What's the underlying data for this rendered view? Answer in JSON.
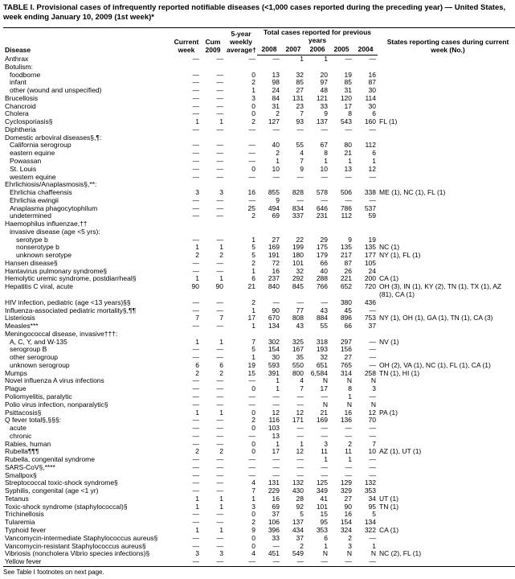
{
  "title": "TABLE I. Provisional cases of infrequently reported notifiable diseases (<1,000 cases reported during the preceding year) — United States, week ending January 10, 2009 (1st week)*",
  "headers": {
    "disease": "Disease",
    "current_week": "Current week",
    "cum_2009": "Cum 2009",
    "avg": "5-year weekly average†",
    "total_span": "Total cases reported for previous years",
    "y2008": "2008",
    "y2007": "2007",
    "y2006": "2006",
    "y2005": "2005",
    "y2004": "2004",
    "states": "States reporting cases during current week (No.)"
  },
  "rows": [
    {
      "d": "Anthrax",
      "i": 0,
      "v": [
        "—",
        "—",
        "—",
        "—",
        "1",
        "1",
        "—",
        "—"
      ],
      "s": ""
    },
    {
      "d": "Botulism:",
      "i": 0,
      "v": [
        "",
        "",
        "",
        "",
        "",
        "",
        "",
        ""
      ],
      "s": ""
    },
    {
      "d": "foodborne",
      "i": 1,
      "v": [
        "—",
        "—",
        "0",
        "13",
        "32",
        "20",
        "19",
        "16"
      ],
      "s": ""
    },
    {
      "d": "infant",
      "i": 1,
      "v": [
        "—",
        "—",
        "2",
        "98",
        "85",
        "97",
        "85",
        "87"
      ],
      "s": ""
    },
    {
      "d": "other (wound and unspecified)",
      "i": 1,
      "v": [
        "—",
        "—",
        "1",
        "24",
        "27",
        "48",
        "31",
        "30"
      ],
      "s": ""
    },
    {
      "d": "Brucellosis",
      "i": 0,
      "v": [
        "—",
        "—",
        "3",
        "84",
        "131",
        "121",
        "120",
        "114"
      ],
      "s": ""
    },
    {
      "d": "Chancroid",
      "i": 0,
      "v": [
        "—",
        "—",
        "0",
        "31",
        "23",
        "33",
        "17",
        "30"
      ],
      "s": ""
    },
    {
      "d": "Cholera",
      "i": 0,
      "v": [
        "—",
        "—",
        "0",
        "2",
        "7",
        "9",
        "8",
        "6"
      ],
      "s": ""
    },
    {
      "d": "Cyclosporiasis§",
      "i": 0,
      "v": [
        "1",
        "1",
        "2",
        "127",
        "93",
        "137",
        "543",
        "160"
      ],
      "s": "FL (1)"
    },
    {
      "d": "Diphtheria",
      "i": 0,
      "v": [
        "—",
        "—",
        "—",
        "—",
        "—",
        "—",
        "—",
        "—"
      ],
      "s": ""
    },
    {
      "d": "Domestic arboviral diseases§,¶:",
      "i": 0,
      "v": [
        "",
        "",
        "",
        "",
        "",
        "",
        "",
        ""
      ],
      "s": ""
    },
    {
      "d": "California serogroup",
      "i": 1,
      "v": [
        "—",
        "—",
        "—",
        "40",
        "55",
        "67",
        "80",
        "112"
      ],
      "s": ""
    },
    {
      "d": "eastern equine",
      "i": 1,
      "v": [
        "—",
        "—",
        "—",
        "2",
        "4",
        "8",
        "21",
        "6"
      ],
      "s": ""
    },
    {
      "d": "Powassan",
      "i": 1,
      "v": [
        "—",
        "—",
        "—",
        "1",
        "7",
        "1",
        "1",
        "1"
      ],
      "s": ""
    },
    {
      "d": "St. Louis",
      "i": 1,
      "v": [
        "—",
        "—",
        "0",
        "10",
        "9",
        "10",
        "13",
        "12"
      ],
      "s": ""
    },
    {
      "d": "western equine",
      "i": 1,
      "v": [
        "—",
        "—",
        "—",
        "—",
        "—",
        "—",
        "—",
        "—"
      ],
      "s": ""
    },
    {
      "d": "Ehrlichiosis/Anaplasmosis§,**:",
      "i": 0,
      "v": [
        "",
        "",
        "",
        "",
        "",
        "",
        "",
        ""
      ],
      "s": ""
    },
    {
      "d": "Ehrlichia chaffeensis",
      "i": 1,
      "v": [
        "3",
        "3",
        "16",
        "855",
        "828",
        "578",
        "506",
        "338"
      ],
      "s": "ME (1), NC (1), FL (1)"
    },
    {
      "d": "Ehrlichia ewingii",
      "i": 1,
      "v": [
        "—",
        "—",
        "—",
        "9",
        "—",
        "—",
        "—",
        "—"
      ],
      "s": ""
    },
    {
      "d": "Anaplasma phagocytophilum",
      "i": 1,
      "v": [
        "—",
        "—",
        "25",
        "494",
        "834",
        "646",
        "786",
        "537"
      ],
      "s": ""
    },
    {
      "d": "undetermined",
      "i": 1,
      "v": [
        "—",
        "—",
        "2",
        "69",
        "337",
        "231",
        "112",
        "59"
      ],
      "s": ""
    },
    {
      "d": "Haemophilus influenzae,††",
      "i": 0,
      "v": [
        "",
        "",
        "",
        "",
        "",
        "",
        "",
        ""
      ],
      "s": ""
    },
    {
      "d": "invasive disease (age <5 yrs):",
      "i": 1,
      "v": [
        "",
        "",
        "",
        "",
        "",
        "",
        "",
        ""
      ],
      "s": ""
    },
    {
      "d": "serotype b",
      "i": 2,
      "v": [
        "—",
        "—",
        "1",
        "27",
        "22",
        "29",
        "9",
        "19"
      ],
      "s": ""
    },
    {
      "d": "nonserotype b",
      "i": 2,
      "v": [
        "1",
        "1",
        "5",
        "169",
        "199",
        "175",
        "135",
        "135"
      ],
      "s": "NC (1)"
    },
    {
      "d": "unknown serotype",
      "i": 2,
      "v": [
        "2",
        "2",
        "5",
        "191",
        "180",
        "179",
        "217",
        "177"
      ],
      "s": "NY (1), FL (1)"
    },
    {
      "d": "Hansen disease§",
      "i": 0,
      "v": [
        "—",
        "—",
        "2",
        "72",
        "101",
        "66",
        "87",
        "105"
      ],
      "s": ""
    },
    {
      "d": "Hantavirus pulmonary syndrome§",
      "i": 0,
      "v": [
        "—",
        "—",
        "1",
        "16",
        "32",
        "40",
        "26",
        "24"
      ],
      "s": ""
    },
    {
      "d": "Hemolytic uremic syndrome, postdiarrheal§",
      "i": 0,
      "v": [
        "1",
        "1",
        "6",
        "237",
        "292",
        "288",
        "221",
        "200"
      ],
      "s": "CA (1)"
    },
    {
      "d": "Hepatitis C viral, acute",
      "i": 0,
      "v": [
        "90",
        "90",
        "21",
        "840",
        "845",
        "766",
        "652",
        "720"
      ],
      "s": "OH (3), IN (1), KY (2), TN (1), TX (1), AZ (81), CA (1)"
    },
    {
      "d": "HIV infection, pediatric (age <13 years)§§",
      "i": 0,
      "v": [
        "—",
        "—",
        "2",
        "—",
        "—",
        "—",
        "380",
        "436"
      ],
      "s": ""
    },
    {
      "d": "Influenza-associated pediatric mortality§,¶¶",
      "i": 0,
      "v": [
        "—",
        "—",
        "1",
        "90",
        "77",
        "43",
        "45",
        "—"
      ],
      "s": ""
    },
    {
      "d": "Listeriosis",
      "i": 0,
      "v": [
        "7",
        "7",
        "17",
        "670",
        "808",
        "884",
        "896",
        "753"
      ],
      "s": "NY (1), OH (1), GA (1), TN (1), CA (3)"
    },
    {
      "d": "Measles***",
      "i": 0,
      "v": [
        "—",
        "—",
        "1",
        "134",
        "43",
        "55",
        "66",
        "37"
      ],
      "s": ""
    },
    {
      "d": "Meningococcal disease, invasive†††:",
      "i": 0,
      "v": [
        "",
        "",
        "",
        "",
        "",
        "",
        "",
        ""
      ],
      "s": ""
    },
    {
      "d": "A, C, Y, and W-135",
      "i": 1,
      "v": [
        "1",
        "1",
        "7",
        "302",
        "325",
        "318",
        "297",
        "—"
      ],
      "s": "NV (1)"
    },
    {
      "d": "serogroup B",
      "i": 1,
      "v": [
        "—",
        "—",
        "5",
        "154",
        "167",
        "193",
        "156",
        "—"
      ],
      "s": ""
    },
    {
      "d": "other serogroup",
      "i": 1,
      "v": [
        "—",
        "—",
        "1",
        "30",
        "35",
        "32",
        "27",
        "—"
      ],
      "s": ""
    },
    {
      "d": "unknown serogroup",
      "i": 1,
      "v": [
        "6",
        "6",
        "19",
        "593",
        "550",
        "651",
        "765",
        "—"
      ],
      "s": "OH (2), VA (1), NC (1), FL (1), CA (1)"
    },
    {
      "d": "Mumps",
      "i": 0,
      "v": [
        "2",
        "2",
        "15",
        "391",
        "800",
        "6,584",
        "314",
        "258"
      ],
      "s": "TN (1), HI (1)"
    },
    {
      "d": "Novel influenza A virus infections",
      "i": 0,
      "v": [
        "—",
        "—",
        "—",
        "1",
        "4",
        "N",
        "N",
        "N"
      ],
      "s": ""
    },
    {
      "d": "Plague",
      "i": 0,
      "v": [
        "—",
        "—",
        "0",
        "1",
        "7",
        "17",
        "8",
        "3"
      ],
      "s": ""
    },
    {
      "d": "Poliomyelitis, paralytic",
      "i": 0,
      "v": [
        "—",
        "—",
        "—",
        "—",
        "—",
        "—",
        "1",
        "—"
      ],
      "s": ""
    },
    {
      "d": "Polio virus infection, nonparalytic§",
      "i": 0,
      "v": [
        "—",
        "—",
        "—",
        "—",
        "—",
        "N",
        "N",
        "N"
      ],
      "s": ""
    },
    {
      "d": "Psittacosis§",
      "i": 0,
      "v": [
        "1",
        "1",
        "0",
        "12",
        "12",
        "21",
        "16",
        "12"
      ],
      "s": "PA (1)"
    },
    {
      "d": "Q fever total§,§§§:",
      "i": 0,
      "v": [
        "—",
        "—",
        "2",
        "116",
        "171",
        "169",
        "136",
        "70"
      ],
      "s": ""
    },
    {
      "d": "acute",
      "i": 1,
      "v": [
        "—",
        "—",
        "0",
        "103",
        "—",
        "—",
        "—",
        "—"
      ],
      "s": ""
    },
    {
      "d": "chronic",
      "i": 1,
      "v": [
        "—",
        "—",
        "—",
        "13",
        "—",
        "—",
        "—",
        "—"
      ],
      "s": ""
    },
    {
      "d": "Rabies, human",
      "i": 0,
      "v": [
        "—",
        "—",
        "0",
        "1",
        "1",
        "3",
        "2",
        "7"
      ],
      "s": ""
    },
    {
      "d": "Rubella¶¶¶",
      "i": 0,
      "v": [
        "2",
        "2",
        "0",
        "17",
        "12",
        "11",
        "11",
        "10"
      ],
      "s": "AZ (1), UT (1)"
    },
    {
      "d": "Rubella, congenital syndrome",
      "i": 0,
      "v": [
        "—",
        "—",
        "—",
        "—",
        "—",
        "1",
        "1",
        "—"
      ],
      "s": ""
    },
    {
      "d": "SARS-CoV§,****",
      "i": 0,
      "v": [
        "—",
        "—",
        "—",
        "—",
        "—",
        "—",
        "—",
        "—"
      ],
      "s": ""
    },
    {
      "d": "Smallpox§",
      "i": 0,
      "v": [
        "—",
        "—",
        "—",
        "—",
        "—",
        "—",
        "—",
        "—"
      ],
      "s": ""
    },
    {
      "d": "Streptococcal toxic-shock syndrome§",
      "i": 0,
      "v": [
        "—",
        "—",
        "4",
        "131",
        "132",
        "125",
        "129",
        "132"
      ],
      "s": ""
    },
    {
      "d": "Syphilis, congenital (age <1 yr)",
      "i": 0,
      "v": [
        "—",
        "—",
        "7",
        "229",
        "430",
        "349",
        "329",
        "353"
      ],
      "s": ""
    },
    {
      "d": "Tetanus",
      "i": 0,
      "v": [
        "1",
        "1",
        "1",
        "16",
        "28",
        "41",
        "27",
        "34"
      ],
      "s": "UT (1)"
    },
    {
      "d": "Toxic-shock syndrome (staphylococcal)§",
      "i": 0,
      "v": [
        "1",
        "1",
        "3",
        "69",
        "92",
        "101",
        "90",
        "95"
      ],
      "s": "TN (1)"
    },
    {
      "d": "Trichinellosis",
      "i": 0,
      "v": [
        "—",
        "—",
        "0",
        "37",
        "5",
        "15",
        "16",
        "5"
      ],
      "s": ""
    },
    {
      "d": "Tularemia",
      "i": 0,
      "v": [
        "—",
        "—",
        "2",
        "106",
        "137",
        "95",
        "154",
        "134"
      ],
      "s": ""
    },
    {
      "d": "Typhoid fever",
      "i": 0,
      "v": [
        "1",
        "1",
        "9",
        "396",
        "434",
        "353",
        "324",
        "322"
      ],
      "s": "CA (1)"
    },
    {
      "d": "Vancomycin-intermediate Staphylococcus aureus§",
      "i": 0,
      "v": [
        "—",
        "—",
        "0",
        "33",
        "37",
        "6",
        "2",
        "—"
      ],
      "s": ""
    },
    {
      "d": "Vancomycin-resistant Staphylococcus aureus§",
      "i": 0,
      "v": [
        "—",
        "—",
        "0",
        "—",
        "2",
        "1",
        "3",
        "1"
      ],
      "s": ""
    },
    {
      "d": "Vibriosis (noncholera Vibrio species infections)§",
      "i": 0,
      "v": [
        "3",
        "3",
        "4",
        "451",
        "549",
        "N",
        "N",
        "N"
      ],
      "s": "NC (2), FL (1)"
    },
    {
      "d": "Yellow fever",
      "i": 0,
      "v": [
        "—",
        "—",
        "—",
        "—",
        "—",
        "—",
        "—",
        "—"
      ],
      "s": ""
    }
  ],
  "footnote": "See Table I footnotes on next page."
}
